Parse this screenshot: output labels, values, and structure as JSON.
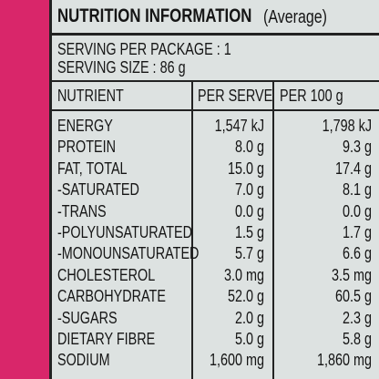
{
  "header": {
    "title": "NUTRITION INFORMATION",
    "subtitle": "(Average)"
  },
  "serving": [
    "SERVING PER PACKAGE : 1",
    "SERVING SIZE : 86 g"
  ],
  "table": {
    "columns": [
      "NUTRIENT",
      "PER SERVE",
      "PER 100 g"
    ],
    "rows": [
      [
        "ENERGY",
        "1,547 kJ",
        "1,798 kJ"
      ],
      [
        "PROTEIN",
        "8.0 g",
        "9.3 g"
      ],
      [
        "FAT, TOTAL",
        "15.0 g",
        "17.4 g"
      ],
      [
        "-SATURATED",
        "7.0 g",
        "8.1 g"
      ],
      [
        "-TRANS",
        "0.0 g",
        "0.0 g"
      ],
      [
        "-POLYUNSATURATED",
        "1.5 g",
        "1.7 g"
      ],
      [
        "-MONOUNSATURATED",
        "5.7 g",
        "6.6 g"
      ],
      [
        "CHOLESTEROL",
        "3.0 mg",
        "3.5 mg"
      ],
      [
        "CARBOHYDRATE",
        "52.0 g",
        "60.5 g"
      ],
      [
        "-SUGARS",
        "2.0 g",
        "2.3 g"
      ],
      [
        "DIETARY FIBRE",
        "5.0 g",
        "5.8 g"
      ],
      [
        "SODIUM",
        "1,600 mg",
        "1,860 mg"
      ]
    ]
  }
}
